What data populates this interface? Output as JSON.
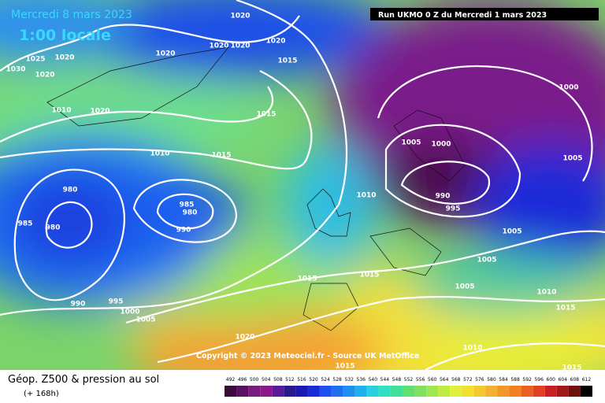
{
  "header": {
    "date": "Mercredi 8 mars 2023",
    "time": "1:00 locale",
    "run": "Run UKMO 0 Z du Mercredi 1 mars 2023"
  },
  "copyright": "Copyright © 2023 Meteociel.fr - Source UK MetOffice",
  "legend": {
    "title": "Géop. Z500 & pression au sol",
    "lead": "(+ 168h)",
    "scale": [
      492,
      496,
      500,
      504,
      508,
      512,
      516,
      520,
      524,
      528,
      532,
      536,
      540,
      544,
      548,
      552,
      556,
      560,
      564,
      568,
      572,
      576,
      580,
      584,
      588,
      592,
      596,
      600,
      604,
      608,
      612
    ]
  },
  "isobar_labels": [
    1020,
    1020,
    1020,
    1020,
    1020,
    1015,
    1025,
    1020,
    1030,
    1020,
    1010,
    1020,
    1015,
    1010,
    1015,
    980,
    985,
    980,
    985,
    980,
    990,
    1005,
    1000,
    1000,
    1005,
    990,
    995,
    1010,
    1005,
    1005,
    1005,
    1015,
    1015,
    1010,
    1015,
    990,
    995,
    1000,
    1005,
    1020,
    1010,
    1015,
    1015
  ]
}
